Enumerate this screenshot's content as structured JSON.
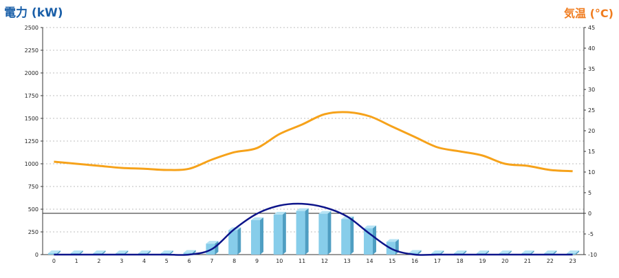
{
  "left_axis_title": "電力 (kW)",
  "right_axis_title": "気温 (°C)",
  "colors": {
    "bar_front": "#87cdea",
    "bar_top": "#b6e3f4",
    "bar_side": "#4f9ec2",
    "curve": "#0d148a",
    "temperature": "#f6a21a",
    "grid": "#bcbcbc",
    "title_left": "#1a5fa8",
    "title_right": "#f07c1e"
  },
  "chart_data": {
    "type": "bar",
    "categories": [
      "0",
      "1",
      "2",
      "3",
      "4",
      "5",
      "6",
      "7",
      "8",
      "9",
      "10",
      "11",
      "12",
      "13",
      "14",
      "15",
      "16",
      "17",
      "18",
      "19",
      "20",
      "21",
      "22",
      "23"
    ],
    "left_axis": {
      "ylim": [
        0,
        2500
      ],
      "ticks": [
        "0",
        "250",
        "500",
        "750",
        "1000",
        "1250",
        "1500",
        "1750",
        "2000",
        "2250",
        "2500"
      ]
    },
    "right_axis": {
      "ylim": [
        -10,
        45
      ],
      "ticks": [
        "-10",
        "-5",
        "0",
        "5",
        "10",
        "15",
        "20",
        "25",
        "30",
        "35",
        "40",
        "45"
      ]
    },
    "grid": true,
    "series": [
      {
        "type": "bar",
        "axis": "left",
        "values": [
          15,
          15,
          15,
          15,
          15,
          15,
          20,
          120,
          270,
          380,
          440,
          480,
          450,
          390,
          290,
          140,
          20,
          15,
          15,
          15,
          15,
          15,
          15,
          15
        ]
      },
      {
        "type": "line",
        "axis": "left",
        "values": [
          0,
          0,
          0,
          0,
          0,
          0,
          0,
          60,
          280,
          450,
          540,
          560,
          520,
          420,
          230,
          60,
          0,
          0,
          0,
          0,
          0,
          0,
          0,
          0
        ]
      },
      {
        "type": "line",
        "axis": "right",
        "values": [
          12.5,
          12.0,
          11.5,
          11.0,
          10.8,
          10.5,
          10.8,
          13.0,
          14.8,
          15.8,
          19.2,
          21.5,
          24.0,
          24.5,
          23.5,
          21.0,
          18.5,
          16.0,
          15.0,
          14.0,
          12.0,
          11.5,
          10.5,
          10.2
        ]
      }
    ]
  }
}
